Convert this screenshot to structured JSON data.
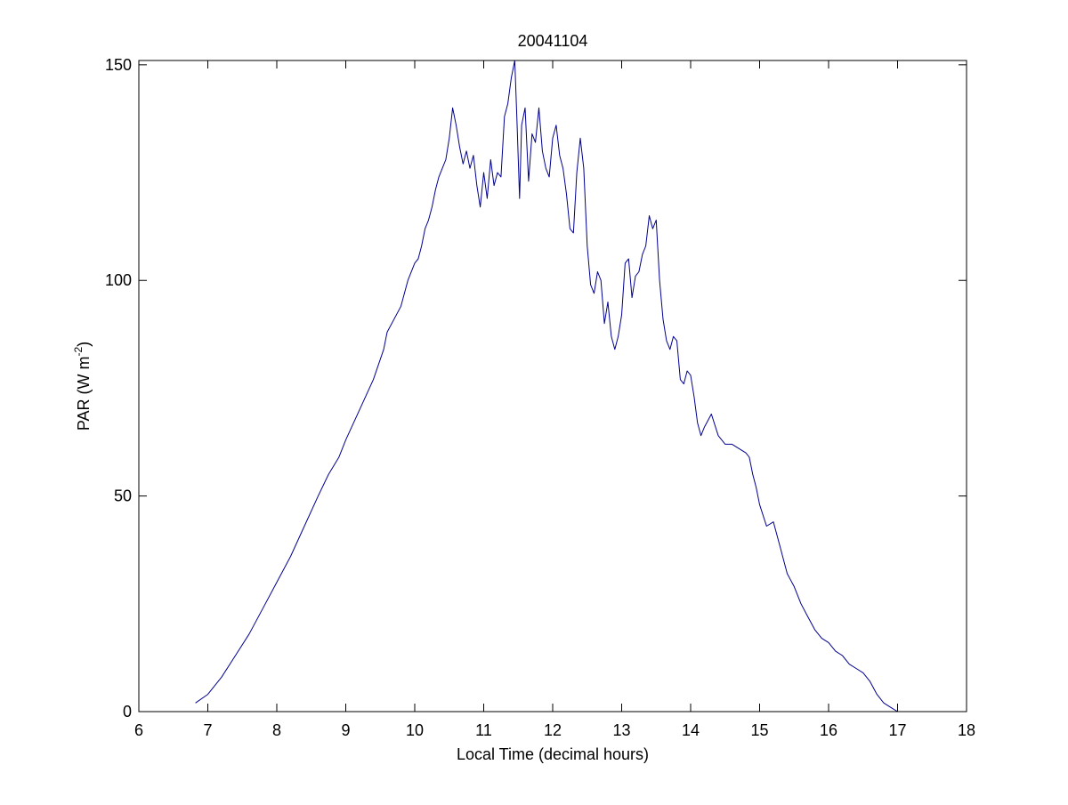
{
  "chart_data": {
    "type": "line",
    "title": "20041104",
    "xlabel": "Local Time (decimal hours)",
    "ylabel": {
      "prefix": "PAR (W m",
      "superscript": "-2",
      "suffix": ")"
    },
    "xlim": [
      6,
      18
    ],
    "ylim": [
      0,
      151
    ],
    "xticks": [
      6,
      7,
      8,
      9,
      10,
      11,
      12,
      13,
      14,
      15,
      16,
      17,
      18
    ],
    "yticks": [
      0,
      50,
      100,
      150
    ],
    "grid": false,
    "line_color": "#00008f",
    "series": [
      {
        "x": [
          6.82,
          7.0,
          7.2,
          7.4,
          7.6,
          7.8,
          8.0,
          8.2,
          8.4,
          8.6,
          8.75,
          8.9,
          9.0,
          9.2,
          9.4,
          9.55,
          9.6,
          9.8,
          9.9,
          10.0,
          10.05,
          10.1,
          10.15,
          10.2,
          10.25,
          10.3,
          10.35,
          10.4,
          10.45,
          10.5,
          10.55,
          10.6,
          10.65,
          10.7,
          10.75,
          10.8,
          10.85,
          10.9,
          10.95,
          11.0,
          11.05,
          11.1,
          11.15,
          11.2,
          11.25,
          11.3,
          11.35,
          11.4,
          11.45,
          11.48,
          11.52,
          11.55,
          11.6,
          11.65,
          11.7,
          11.75,
          11.8,
          11.85,
          11.9,
          11.95,
          12.0,
          12.05,
          12.1,
          12.15,
          12.2,
          12.25,
          12.3,
          12.35,
          12.4,
          12.45,
          12.5,
          12.55,
          12.6,
          12.65,
          12.7,
          12.75,
          12.8,
          12.85,
          12.9,
          12.95,
          13.0,
          13.05,
          13.1,
          13.15,
          13.2,
          13.25,
          13.3,
          13.35,
          13.4,
          13.45,
          13.5,
          13.55,
          13.6,
          13.65,
          13.7,
          13.75,
          13.8,
          13.85,
          13.9,
          13.95,
          14.0,
          14.05,
          14.1,
          14.15,
          14.2,
          14.3,
          14.4,
          14.5,
          14.6,
          14.7,
          14.8,
          14.85,
          14.9,
          14.95,
          15.0,
          15.1,
          15.2,
          15.3,
          15.4,
          15.5,
          15.6,
          15.7,
          15.8,
          15.9,
          16.0,
          16.1,
          16.2,
          16.3,
          16.4,
          16.5,
          16.6,
          16.7,
          16.8,
          16.9,
          17.0
        ],
        "y": [
          2,
          4,
          8,
          13,
          18,
          24,
          30,
          36,
          43,
          50,
          55,
          59,
          63,
          70,
          77,
          84,
          88,
          94,
          100,
          104,
          105,
          108,
          112,
          114,
          117,
          121,
          124,
          126,
          128,
          133,
          140,
          136,
          131,
          127,
          130,
          126,
          129,
          122,
          117,
          125,
          119,
          128,
          122,
          125,
          124,
          138,
          141,
          147,
          151,
          138,
          119,
          136,
          140,
          123,
          134,
          132,
          140,
          130,
          126,
          124,
          133,
          136,
          129,
          126,
          120,
          112,
          111,
          125,
          133,
          126,
          108,
          99,
          97,
          102,
          100,
          90,
          95,
          87,
          84,
          87,
          92,
          104,
          105,
          96,
          101,
          102,
          106,
          108,
          115,
          112,
          114,
          100,
          91,
          86,
          84,
          87,
          86,
          77,
          76,
          79,
          78,
          73,
          67,
          64,
          66,
          69,
          64,
          62,
          62,
          61,
          60,
          59,
          55,
          52,
          48,
          43,
          44,
          38,
          32,
          29,
          25,
          22,
          19,
          17,
          16,
          14,
          13,
          11,
          10,
          9,
          7,
          4,
          2,
          1,
          0
        ]
      }
    ]
  }
}
